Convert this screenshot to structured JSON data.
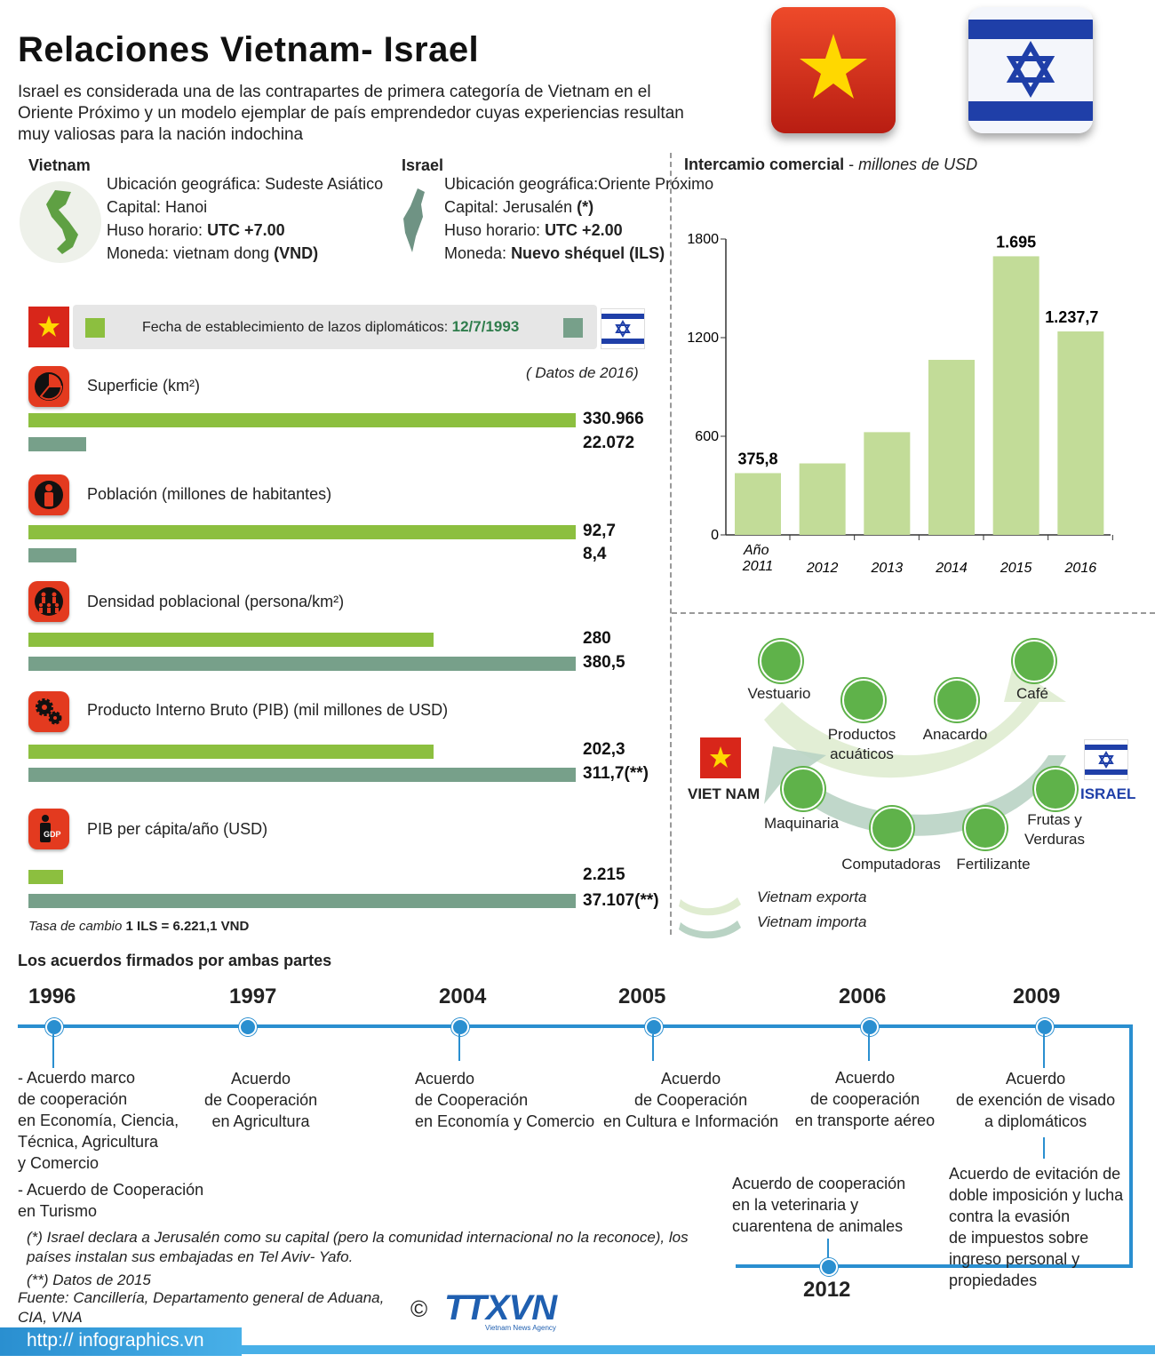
{
  "header": {
    "title": "Relaciones Vietnam- Israel",
    "intro": "Israel es considerada una de las contrapartes de primera categoría de Vietnam en el Oriente Próximo y un modelo ejemplar de país emprendedor cuyas experiencias resultan muy valiosas para la nación indochina"
  },
  "vietnam": {
    "name": "Vietnam",
    "location_label": "Ubicación geográfica: ",
    "location": "Sudeste Asiático",
    "capital_label": "Capital: ",
    "capital": "Hanoi",
    "tz_label": "Huso horario: ",
    "tz": "UTC +7.00",
    "currency_label": "Moneda: vietnam dong ",
    "currency": "(VND)"
  },
  "israel": {
    "name": "Israel",
    "location_label": "Ubicación geográfica:",
    "location": "Oriente Próximo",
    "capital_label": "Capital: Jerusalén ",
    "capital": "(*)",
    "tz_label": "Huso horario: ",
    "tz": "UTC +2.00",
    "currency_label": "Moneda: ",
    "currency": "Nuevo shéquel (ILS)"
  },
  "diplomatic": {
    "label": "Fecha de establecimiento de lazos diplomáticos: ",
    "date": "12/7/1993",
    "data_year": "( Datos de 2016)"
  },
  "comparisons": [
    {
      "label": "Superficie (km²)",
      "icon": "pie-chart-icon",
      "vn_value": "330.966",
      "il_value": "22.072",
      "vn_frac": 1.0,
      "il_frac": 0.105
    },
    {
      "label": "Población (millones de habitantes)",
      "icon": "person-icon",
      "vn_value": "92,7",
      "il_value": "8,4",
      "vn_frac": 1.0,
      "il_frac": 0.087
    },
    {
      "label": "Densidad poblacional (persona/km²)",
      "icon": "people-group-icon",
      "vn_value": "280",
      "il_value": "380,5",
      "vn_frac": 0.74,
      "il_frac": 1.0
    },
    {
      "label": "Producto Interno Bruto (PIB) (mil millones de USD)",
      "icon": "gears-icon",
      "vn_value": "202,3",
      "il_value": "311,7(**)",
      "vn_frac": 0.74,
      "il_frac": 1.0
    },
    {
      "label": "PIB per cápita/año (USD)",
      "icon": "gdp-icon",
      "vn_value": "2.215",
      "il_value": "37.107(**)",
      "vn_frac": 0.063,
      "il_frac": 1.0
    }
  ],
  "exchange_rate": {
    "label": "Tasa de cambio ",
    "value": "1 ILS = 6.221,1 VND"
  },
  "chart_data": {
    "type": "bar",
    "title": "Intercamio comercial",
    "subtitle": "millones de USD",
    "xlabel": "Año",
    "categories": [
      "2011",
      "2012",
      "2013",
      "2014",
      "2015",
      "2016"
    ],
    "values": [
      375.8,
      435,
      625,
      1065,
      1695,
      1237.7
    ],
    "data_labels": [
      "375,8",
      "",
      "",
      "",
      "1.695",
      "1.237,7"
    ],
    "yticks": [
      0,
      600,
      1200,
      1800
    ],
    "ylim": [
      0,
      1800
    ],
    "color": "#c2dc98"
  },
  "trade": {
    "vn_label": "VIET NAM",
    "il_label": "ISRAEL",
    "exports": [
      "Vestuario",
      "Productos acuáticos",
      "Anacardo",
      "Café"
    ],
    "imports": [
      "Maquinaria",
      "Computadoras",
      "Fertilizante",
      "Frutas y Verduras"
    ],
    "legend_export": "Vietnam exporta",
    "legend_import": "Vietnam importa"
  },
  "agreements": {
    "heading": "Los acuerdos firmados por ambas partes",
    "items": [
      {
        "year": "1996",
        "text": [
          "- Acuerdo marco",
          "de cooperación",
          "en Economía, Ciencia,",
          "Técnica, Agricultura",
          " y Comercio",
          "- Acuerdo de Cooperación",
          "en Turismo"
        ]
      },
      {
        "year": "1997",
        "text": [
          "Acuerdo",
          "de Cooperación",
          "en Agricultura"
        ]
      },
      {
        "year": "2004",
        "text": [
          "Acuerdo",
          "de Cooperación",
          "en Economía y Comercio"
        ]
      },
      {
        "year": "2005",
        "text": [
          "Acuerdo",
          "de Cooperación",
          "en Cultura e Información"
        ]
      },
      {
        "year": "2006",
        "text": [
          "Acuerdo",
          "de cooperación",
          "en transporte aéreo"
        ]
      },
      {
        "year": "2009",
        "text": [
          "Acuerdo",
          "de exención de visado",
          "a diplomáticos"
        ]
      },
      {
        "year": "2009b",
        "text": [
          "Acuerdo de evitación de",
          "doble imposición y lucha",
          "contra la evasión",
          "de impuestos sobre",
          "ingreso personal y",
          "propiedades"
        ]
      },
      {
        "year": "2012",
        "text": [
          "Acuerdo de cooperación",
          "en la veterinaria y",
          "cuarentena de animales"
        ]
      }
    ]
  },
  "footer": {
    "note1": "(*) Israel declara a Jerusalén como su capital (pero la comunidad internacional no la reconoce), los países instalan sus embajadas en  Tel Aviv- Yafo.",
    "note2": "(**) Datos de 2015",
    "source": "Fuente: Cancillería, Departamento general de Aduana, CIA, VNA",
    "brand": "TTXVN",
    "brand_sub": "Vietnam News Agency",
    "url": "http:// infographics.vn"
  }
}
